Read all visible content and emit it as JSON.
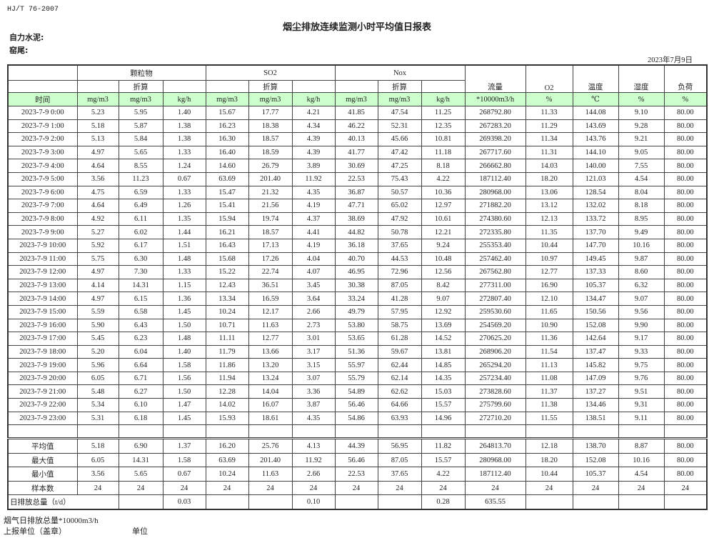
{
  "doc": {
    "standard": "HJ/T  76-2007",
    "title": "烟尘排放连续监测小时平均值日报表",
    "company_label": "自力水泥:",
    "kiln_label": "窑尾:",
    "date": "2023年7月9日"
  },
  "header": {
    "groups": [
      "颗粒物",
      "SO2",
      "Nox"
    ],
    "converted": "折算",
    "flow": "流量",
    "o2": "O2",
    "temp": "温度",
    "humidity": "湿度",
    "load": "负荷",
    "units": [
      "时间",
      "mg/m3",
      "mg/m3",
      "kg/h",
      "mg/m3",
      "mg/m3",
      "kg/h",
      "mg/m3",
      "mg/m3",
      "kg/h",
      "*10000m3/h",
      "%",
      "℃",
      "%",
      "%"
    ]
  },
  "rows": [
    [
      "2023-7-9 0:00",
      "5.23",
      "5.95",
      "1.40",
      "15.67",
      "17.77",
      "4.21",
      "41.85",
      "47.54",
      "11.25",
      "268792.80",
      "11.33",
      "144.08",
      "9.10",
      "80.00"
    ],
    [
      "2023-7-9 1:00",
      "5.18",
      "5.87",
      "1.38",
      "16.23",
      "18.38",
      "4.34",
      "46.22",
      "52.31",
      "12.35",
      "267283.20",
      "11.29",
      "143.69",
      "9.28",
      "80.00"
    ],
    [
      "2023-7-9 2:00",
      "5.13",
      "5.84",
      "1.38",
      "16.30",
      "18.57",
      "4.39",
      "40.13",
      "45.66",
      "10.81",
      "269398.20",
      "11.34",
      "143.76",
      "9.21",
      "80.00"
    ],
    [
      "2023-7-9 3:00",
      "4.97",
      "5.65",
      "1.33",
      "16.40",
      "18.59",
      "4.39",
      "41.77",
      "47.42",
      "11.18",
      "267717.60",
      "11.31",
      "144.10",
      "9.05",
      "80.00"
    ],
    [
      "2023-7-9 4:00",
      "4.64",
      "8.55",
      "1.24",
      "14.60",
      "26.79",
      "3.89",
      "30.69",
      "47.25",
      "8.18",
      "266662.80",
      "14.03",
      "140.00",
      "7.55",
      "80.00"
    ],
    [
      "2023-7-9 5:00",
      "3.56",
      "11.23",
      "0.67",
      "63.69",
      "201.40",
      "11.92",
      "22.53",
      "75.43",
      "4.22",
      "187112.40",
      "18.20",
      "121.03",
      "4.54",
      "80.00"
    ],
    [
      "2023-7-9 6:00",
      "4.75",
      "6.59",
      "1.33",
      "15.47",
      "21.32",
      "4.35",
      "36.87",
      "50.57",
      "10.36",
      "280968.00",
      "13.06",
      "128.54",
      "8.04",
      "80.00"
    ],
    [
      "2023-7-9 7:00",
      "4.64",
      "6.49",
      "1.26",
      "15.41",
      "21.56",
      "4.19",
      "47.71",
      "65.02",
      "12.97",
      "271882.20",
      "13.12",
      "132.02",
      "8.18",
      "80.00"
    ],
    [
      "2023-7-9 8:00",
      "4.92",
      "6.11",
      "1.35",
      "15.94",
      "19.74",
      "4.37",
      "38.69",
      "47.92",
      "10.61",
      "274380.60",
      "12.13",
      "133.72",
      "8.95",
      "80.00"
    ],
    [
      "2023-7-9 9:00",
      "5.27",
      "6.02",
      "1.44",
      "16.21",
      "18.57",
      "4.41",
      "44.82",
      "50.78",
      "12.21",
      "272335.80",
      "11.35",
      "137.70",
      "9.49",
      "80.00"
    ],
    [
      "2023-7-9 10:00",
      "5.92",
      "6.17",
      "1.51",
      "16.43",
      "17.13",
      "4.19",
      "36.18",
      "37.65",
      "9.24",
      "255353.40",
      "10.44",
      "147.70",
      "10.16",
      "80.00"
    ],
    [
      "2023-7-9 11:00",
      "5.75",
      "6.30",
      "1.48",
      "15.68",
      "17.26",
      "4.04",
      "40.70",
      "44.53",
      "10.48",
      "257462.40",
      "10.97",
      "149.45",
      "9.87",
      "80.00"
    ],
    [
      "2023-7-9 12:00",
      "4.97",
      "7.30",
      "1.33",
      "15.22",
      "22.74",
      "4.07",
      "46.95",
      "72.96",
      "12.56",
      "267562.80",
      "12.77",
      "137.33",
      "8.60",
      "80.00"
    ],
    [
      "2023-7-9 13:00",
      "4.14",
      "14.31",
      "1.15",
      "12.43",
      "36.51",
      "3.45",
      "30.38",
      "87.05",
      "8.42",
      "277311.00",
      "16.90",
      "105.37",
      "6.32",
      "80.00"
    ],
    [
      "2023-7-9 14:00",
      "4.97",
      "6.15",
      "1.36",
      "13.34",
      "16.59",
      "3.64",
      "33.24",
      "41.28",
      "9.07",
      "272807.40",
      "12.10",
      "134.47",
      "9.07",
      "80.00"
    ],
    [
      "2023-7-9 15:00",
      "5.59",
      "6.58",
      "1.45",
      "10.24",
      "12.17",
      "2.66",
      "49.79",
      "57.95",
      "12.92",
      "259530.60",
      "11.65",
      "150.56",
      "9.56",
      "80.00"
    ],
    [
      "2023-7-9 16:00",
      "5.90",
      "6.43",
      "1.50",
      "10.71",
      "11.63",
      "2.73",
      "53.80",
      "58.75",
      "13.69",
      "254569.20",
      "10.90",
      "152.08",
      "9.90",
      "80.00"
    ],
    [
      "2023-7-9 17:00",
      "5.45",
      "6.23",
      "1.48",
      "11.11",
      "12.77",
      "3.01",
      "53.65",
      "61.28",
      "14.52",
      "270625.20",
      "11.36",
      "142.64",
      "9.17",
      "80.00"
    ],
    [
      "2023-7-9 18:00",
      "5.20",
      "6.04",
      "1.40",
      "11.79",
      "13.66",
      "3.17",
      "51.36",
      "59.67",
      "13.81",
      "268906.20",
      "11.54",
      "137.47",
      "9.33",
      "80.00"
    ],
    [
      "2023-7-9 19:00",
      "5.96",
      "6.64",
      "1.58",
      "11.86",
      "13.20",
      "3.15",
      "55.97",
      "62.44",
      "14.85",
      "265294.20",
      "11.13",
      "145.82",
      "9.75",
      "80.00"
    ],
    [
      "2023-7-9 20:00",
      "6.05",
      "6.71",
      "1.56",
      "11.94",
      "13.24",
      "3.07",
      "55.79",
      "62.14",
      "14.35",
      "257234.40",
      "11.08",
      "147.09",
      "9.76",
      "80.00"
    ],
    [
      "2023-7-9 21:00",
      "5.48",
      "6.27",
      "1.50",
      "12.28",
      "14.04",
      "3.36",
      "54.89",
      "62.62",
      "15.03",
      "273828.60",
      "11.37",
      "137.27",
      "9.51",
      "80.00"
    ],
    [
      "2023-7-9 22:00",
      "5.34",
      "6.10",
      "1.47",
      "14.02",
      "16.07",
      "3.87",
      "56.46",
      "64.66",
      "15.57",
      "275799.60",
      "11.38",
      "134.46",
      "9.31",
      "80.00"
    ],
    [
      "2023-7-9 23:00",
      "5.31",
      "6.18",
      "1.45",
      "15.93",
      "18.61",
      "4.35",
      "54.86",
      "63.93",
      "14.96",
      "272710.20",
      "11.55",
      "138.51",
      "9.11",
      "80.00"
    ]
  ],
  "summary": [
    [
      "平均值",
      "5.18",
      "6.90",
      "1.37",
      "16.20",
      "25.76",
      "4.13",
      "44.39",
      "56.95",
      "11.82",
      "264813.70",
      "12.18",
      "138.70",
      "8.87",
      "80.00"
    ],
    [
      "最大值",
      "6.05",
      "14.31",
      "1.58",
      "63.69",
      "201.40",
      "11.92",
      "56.46",
      "87.05",
      "15.57",
      "280968.00",
      "18.20",
      "152.08",
      "10.16",
      "80.00"
    ],
    [
      "最小值",
      "3.56",
      "5.65",
      "0.67",
      "10.24",
      "11.63",
      "2.66",
      "22.53",
      "37.65",
      "4.22",
      "187112.40",
      "10.44",
      "105.37",
      "4.54",
      "80.00"
    ],
    [
      "样本数",
      "24",
      "24",
      "24",
      "24",
      "24",
      "24",
      "24",
      "24",
      "24",
      "24",
      "24",
      "24",
      "24",
      "24"
    ]
  ],
  "daily_total": {
    "label": "日排放总量（t/d）",
    "particulate_kgh": "0.03",
    "so2_kgh": "0.10",
    "nox_kgh": "0.28",
    "flow": "635.55"
  },
  "footer": {
    "flue_gas_total": "烟气日排放总量*10000m3/h",
    "reporting_unit": "上报单位（盖章）",
    "unit": "单位"
  },
  "colors": {
    "header_green": "#ccffcc"
  }
}
